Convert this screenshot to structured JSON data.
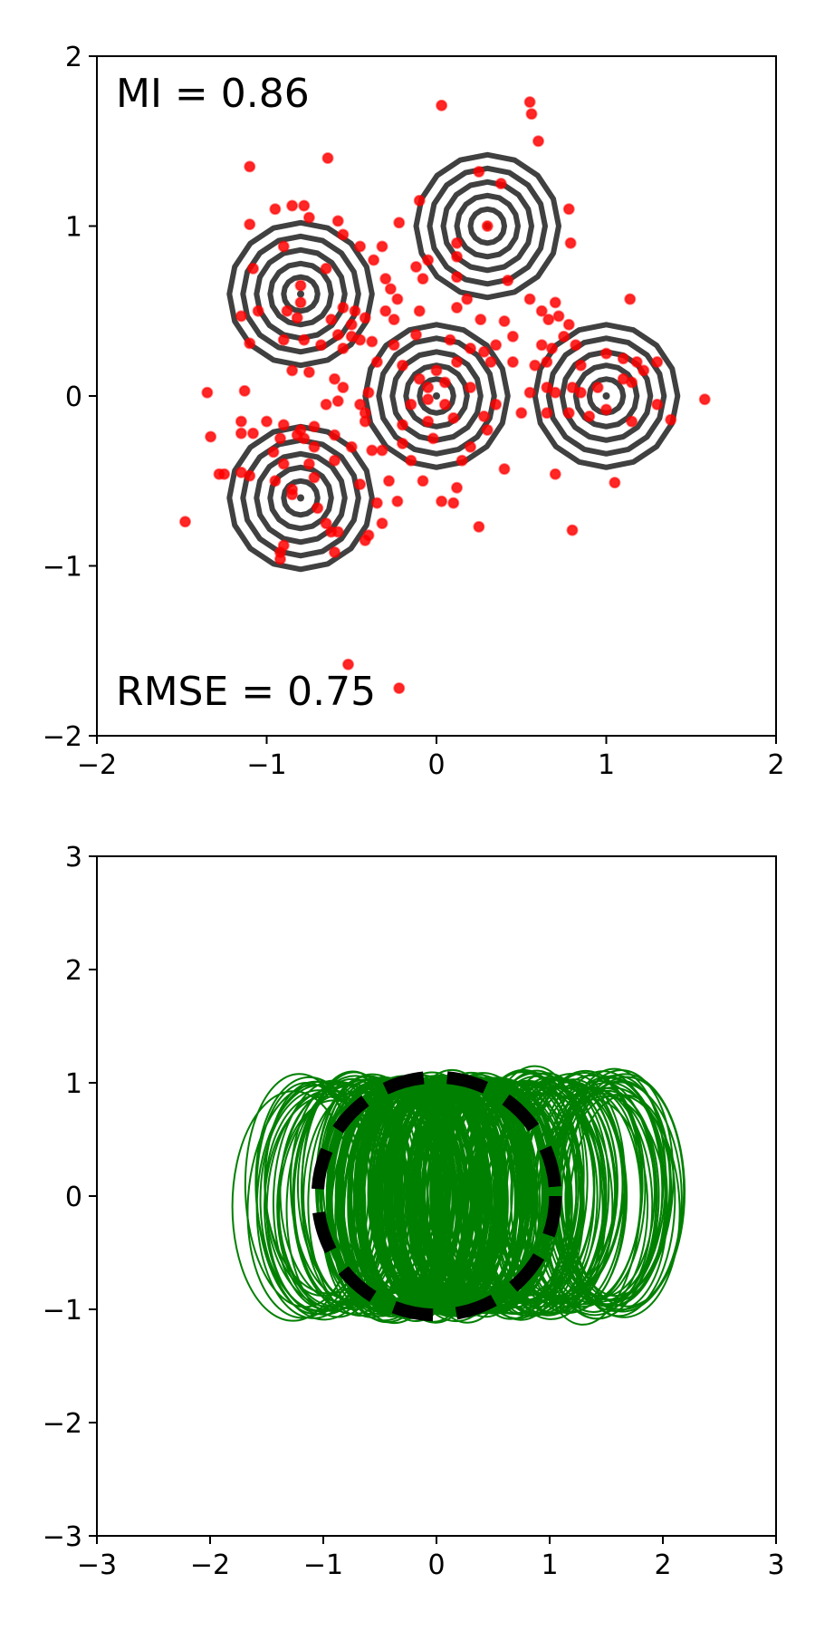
{
  "chart_data": [
    {
      "type": "scatter",
      "subtype": "scatter-with-contours",
      "annotations": {
        "mi": "MI = 0.86",
        "rmse": "RMSE = 0.75"
      },
      "xlim": [
        -2,
        2
      ],
      "ylim": [
        -2,
        2
      ],
      "xticks": [
        "−2",
        "−1",
        "0",
        "1",
        "2"
      ],
      "yticks": [
        "−2",
        "−1",
        "0",
        "1",
        "2"
      ],
      "grid": false,
      "colors": {
        "points": "#ff0000",
        "contours": "#404040"
      },
      "contour_centers": [
        [
          -0.8,
          0.6
        ],
        [
          0.3,
          1.0
        ],
        [
          0.0,
          0.0
        ],
        [
          1.0,
          0.0
        ],
        [
          -0.8,
          -0.6
        ]
      ],
      "contour_radii": [
        0.1,
        0.18,
        0.26,
        0.34,
        0.42
      ],
      "points": [
        [
          -1.1,
          1.35
        ],
        [
          -0.64,
          1.4
        ],
        [
          0.03,
          1.71
        ],
        [
          0.55,
          1.73
        ],
        [
          0.56,
          1.66
        ],
        [
          0.6,
          1.5
        ],
        [
          0.25,
          1.32
        ],
        [
          0.38,
          1.25
        ],
        [
          -0.1,
          1.15
        ],
        [
          0.78,
          1.1
        ],
        [
          -0.95,
          1.1
        ],
        [
          -0.85,
          1.12
        ],
        [
          -0.78,
          1.12
        ],
        [
          -0.75,
          1.05
        ],
        [
          -0.58,
          1.03
        ],
        [
          -0.22,
          1.02
        ],
        [
          0.3,
          1.0
        ],
        [
          0.79,
          0.9
        ],
        [
          -1.1,
          1.01
        ],
        [
          -0.9,
          0.88
        ],
        [
          -0.55,
          0.95
        ],
        [
          -0.45,
          0.88
        ],
        [
          -0.32,
          0.88
        ],
        [
          0.12,
          0.9
        ],
        [
          -0.05,
          0.8
        ],
        [
          0.12,
          0.82
        ],
        [
          -0.12,
          0.76
        ],
        [
          -0.08,
          0.69
        ],
        [
          -0.3,
          0.69
        ],
        [
          -0.27,
          0.63
        ],
        [
          -0.23,
          0.57
        ],
        [
          -0.37,
          0.8
        ],
        [
          -1.08,
          0.75
        ],
        [
          -0.65,
          0.75
        ],
        [
          -0.8,
          0.65
        ],
        [
          0.12,
          0.7
        ],
        [
          0.42,
          0.68
        ],
        [
          0.55,
          0.57
        ],
        [
          0.7,
          0.55
        ],
        [
          0.18,
          0.57
        ],
        [
          -0.88,
          0.5
        ],
        [
          -0.8,
          0.55
        ],
        [
          -1.15,
          0.47
        ],
        [
          -1.05,
          0.5
        ],
        [
          -0.55,
          0.52
        ],
        [
          -0.48,
          0.5
        ],
        [
          -0.82,
          0.46
        ],
        [
          -0.62,
          0.45
        ],
        [
          -0.5,
          0.42
        ],
        [
          -0.42,
          0.46
        ],
        [
          -0.3,
          0.5
        ],
        [
          -0.25,
          0.45
        ],
        [
          -0.1,
          0.5
        ],
        [
          0.12,
          0.52
        ],
        [
          0.26,
          0.45
        ],
        [
          0.4,
          0.44
        ],
        [
          0.62,
          0.5
        ],
        [
          0.66,
          0.45
        ],
        [
          0.72,
          0.47
        ],
        [
          0.78,
          0.42
        ],
        [
          -0.58,
          0.36
        ],
        [
          -0.5,
          0.35
        ],
        [
          -0.45,
          0.33
        ],
        [
          -0.38,
          0.32
        ],
        [
          -0.25,
          0.3
        ],
        [
          -0.12,
          0.36
        ],
        [
          0.08,
          0.33
        ],
        [
          0.2,
          0.28
        ],
        [
          0.28,
          0.26
        ],
        [
          0.35,
          0.3
        ],
        [
          0.45,
          0.35
        ],
        [
          0.62,
          0.3
        ],
        [
          0.68,
          0.28
        ],
        [
          0.75,
          0.35
        ],
        [
          0.82,
          0.3
        ],
        [
          1.14,
          0.57
        ],
        [
          -1.1,
          0.31
        ],
        [
          -0.9,
          0.33
        ],
        [
          -0.78,
          0.33
        ],
        [
          -0.68,
          0.3
        ],
        [
          -0.55,
          0.28
        ],
        [
          -0.35,
          0.2
        ],
        [
          -0.2,
          0.18
        ],
        [
          0.0,
          0.15
        ],
        [
          0.12,
          0.2
        ],
        [
          0.32,
          0.2
        ],
        [
          0.45,
          0.2
        ],
        [
          0.58,
          0.18
        ],
        [
          0.65,
          0.2
        ],
        [
          0.85,
          0.18
        ],
        [
          1.0,
          0.25
        ],
        [
          1.1,
          0.22
        ],
        [
          1.18,
          0.2
        ],
        [
          1.22,
          0.15
        ],
        [
          1.3,
          0.2
        ],
        [
          -0.85,
          0.15
        ],
        [
          -0.75,
          0.14
        ],
        [
          -0.6,
          0.1
        ],
        [
          -0.55,
          0.05
        ],
        [
          -0.4,
          0.02
        ],
        [
          -0.1,
          0.1
        ],
        [
          -0.05,
          0.05
        ],
        [
          0.05,
          0.08
        ],
        [
          0.2,
          0.05
        ],
        [
          0.55,
          0.02
        ],
        [
          0.65,
          0.05
        ],
        [
          0.7,
          0.02
        ],
        [
          0.8,
          0.05
        ],
        [
          0.85,
          0.02
        ],
        [
          0.95,
          0.05
        ],
        [
          1.1,
          0.1
        ],
        [
          1.15,
          0.08
        ],
        [
          -1.35,
          0.02
        ],
        [
          -1.13,
          0.03
        ],
        [
          -0.05,
          -0.02
        ],
        [
          0.35,
          -0.05
        ],
        [
          1.58,
          -0.02
        ],
        [
          -0.65,
          -0.05
        ],
        [
          -0.58,
          -0.03
        ],
        [
          -0.45,
          -0.05
        ],
        [
          -0.42,
          -0.1
        ],
        [
          -0.15,
          -0.05
        ],
        [
          0.05,
          -0.05
        ],
        [
          0.28,
          -0.12
        ],
        [
          0.5,
          -0.1
        ],
        [
          0.65,
          -0.1
        ],
        [
          0.78,
          -0.1
        ],
        [
          0.9,
          -0.12
        ],
        [
          1.0,
          -0.08
        ],
        [
          1.15,
          -0.15
        ],
        [
          1.3,
          -0.05
        ],
        [
          1.38,
          -0.14
        ],
        [
          -1.15,
          -0.15
        ],
        [
          -1.0,
          -0.15
        ],
        [
          -0.9,
          -0.17
        ],
        [
          -0.8,
          -0.2
        ],
        [
          -0.72,
          -0.18
        ],
        [
          -0.42,
          -0.15
        ],
        [
          -0.2,
          -0.17
        ],
        [
          -0.05,
          -0.15
        ],
        [
          0.1,
          -0.13
        ],
        [
          0.3,
          -0.2
        ],
        [
          -1.33,
          -0.24
        ],
        [
          -1.15,
          -0.22
        ],
        [
          -1.08,
          -0.22
        ],
        [
          -0.92,
          -0.25
        ],
        [
          -0.82,
          -0.23
        ],
        [
          -0.78,
          -0.25
        ],
        [
          -0.72,
          -0.3
        ],
        [
          -0.6,
          -0.23
        ],
        [
          -0.38,
          -0.32
        ],
        [
          -0.2,
          -0.28
        ],
        [
          -0.02,
          -0.25
        ],
        [
          0.2,
          -0.3
        ],
        [
          -0.96,
          -0.33
        ],
        [
          -0.9,
          -0.4
        ],
        [
          -0.75,
          -0.4
        ],
        [
          -0.6,
          -0.38
        ],
        [
          -0.5,
          -0.3
        ],
        [
          -0.32,
          -0.32
        ],
        [
          -0.15,
          -0.38
        ],
        [
          0.15,
          -0.38
        ],
        [
          0.4,
          -0.43
        ],
        [
          -1.15,
          -0.45
        ],
        [
          -1.1,
          -0.47
        ],
        [
          -1.25,
          -0.46
        ],
        [
          -1.28,
          -0.46
        ],
        [
          -0.95,
          -0.5
        ],
        [
          -0.72,
          -0.48
        ],
        [
          -0.28,
          -0.5
        ],
        [
          -0.08,
          -0.5
        ],
        [
          0.7,
          -0.46
        ],
        [
          1.05,
          -0.51
        ],
        [
          -0.85,
          -0.55
        ],
        [
          -0.85,
          -0.58
        ],
        [
          -0.45,
          -0.52
        ],
        [
          0.12,
          -0.54
        ],
        [
          -0.7,
          -0.66
        ],
        [
          -0.35,
          -0.63
        ],
        [
          -0.23,
          -0.62
        ],
        [
          0.03,
          -0.62
        ],
        [
          0.1,
          -0.63
        ],
        [
          -1.48,
          -0.74
        ],
        [
          -0.65,
          -0.75
        ],
        [
          -0.62,
          -0.8
        ],
        [
          -0.58,
          -0.8
        ],
        [
          -0.32,
          -0.75
        ],
        [
          0.25,
          -0.77
        ],
        [
          0.8,
          -0.79
        ],
        [
          -0.42,
          -0.85
        ],
        [
          -0.4,
          -0.82
        ],
        [
          -0.6,
          -0.92
        ],
        [
          -0.9,
          -0.88
        ],
        [
          -0.92,
          -0.92
        ],
        [
          -0.92,
          -0.96
        ],
        [
          -0.52,
          -1.58
        ],
        [
          -0.22,
          -1.72
        ]
      ]
    },
    {
      "type": "line",
      "subtype": "ellipse-overlay",
      "xlim": [
        -3,
        3
      ],
      "ylim": [
        -3,
        3
      ],
      "xticks": [
        "−3",
        "−2",
        "−1",
        "0",
        "1",
        "2",
        "3"
      ],
      "yticks": [
        "−3",
        "−2",
        "−1",
        "0",
        "1",
        "2",
        "3"
      ],
      "grid": false,
      "colors": {
        "ellipses": "#008000",
        "reference": "#000000"
      },
      "ellipse_center_x_range": [
        -1.3,
        1.7
      ],
      "ellipse_center_y_range": [
        -0.1,
        0.1
      ],
      "ellipse_rx": 0.5,
      "ellipse_ry": 1.0,
      "reference_circle": {
        "cx": 0.0,
        "cy": 0.0,
        "r": 1.05,
        "style": "dashed"
      }
    }
  ]
}
